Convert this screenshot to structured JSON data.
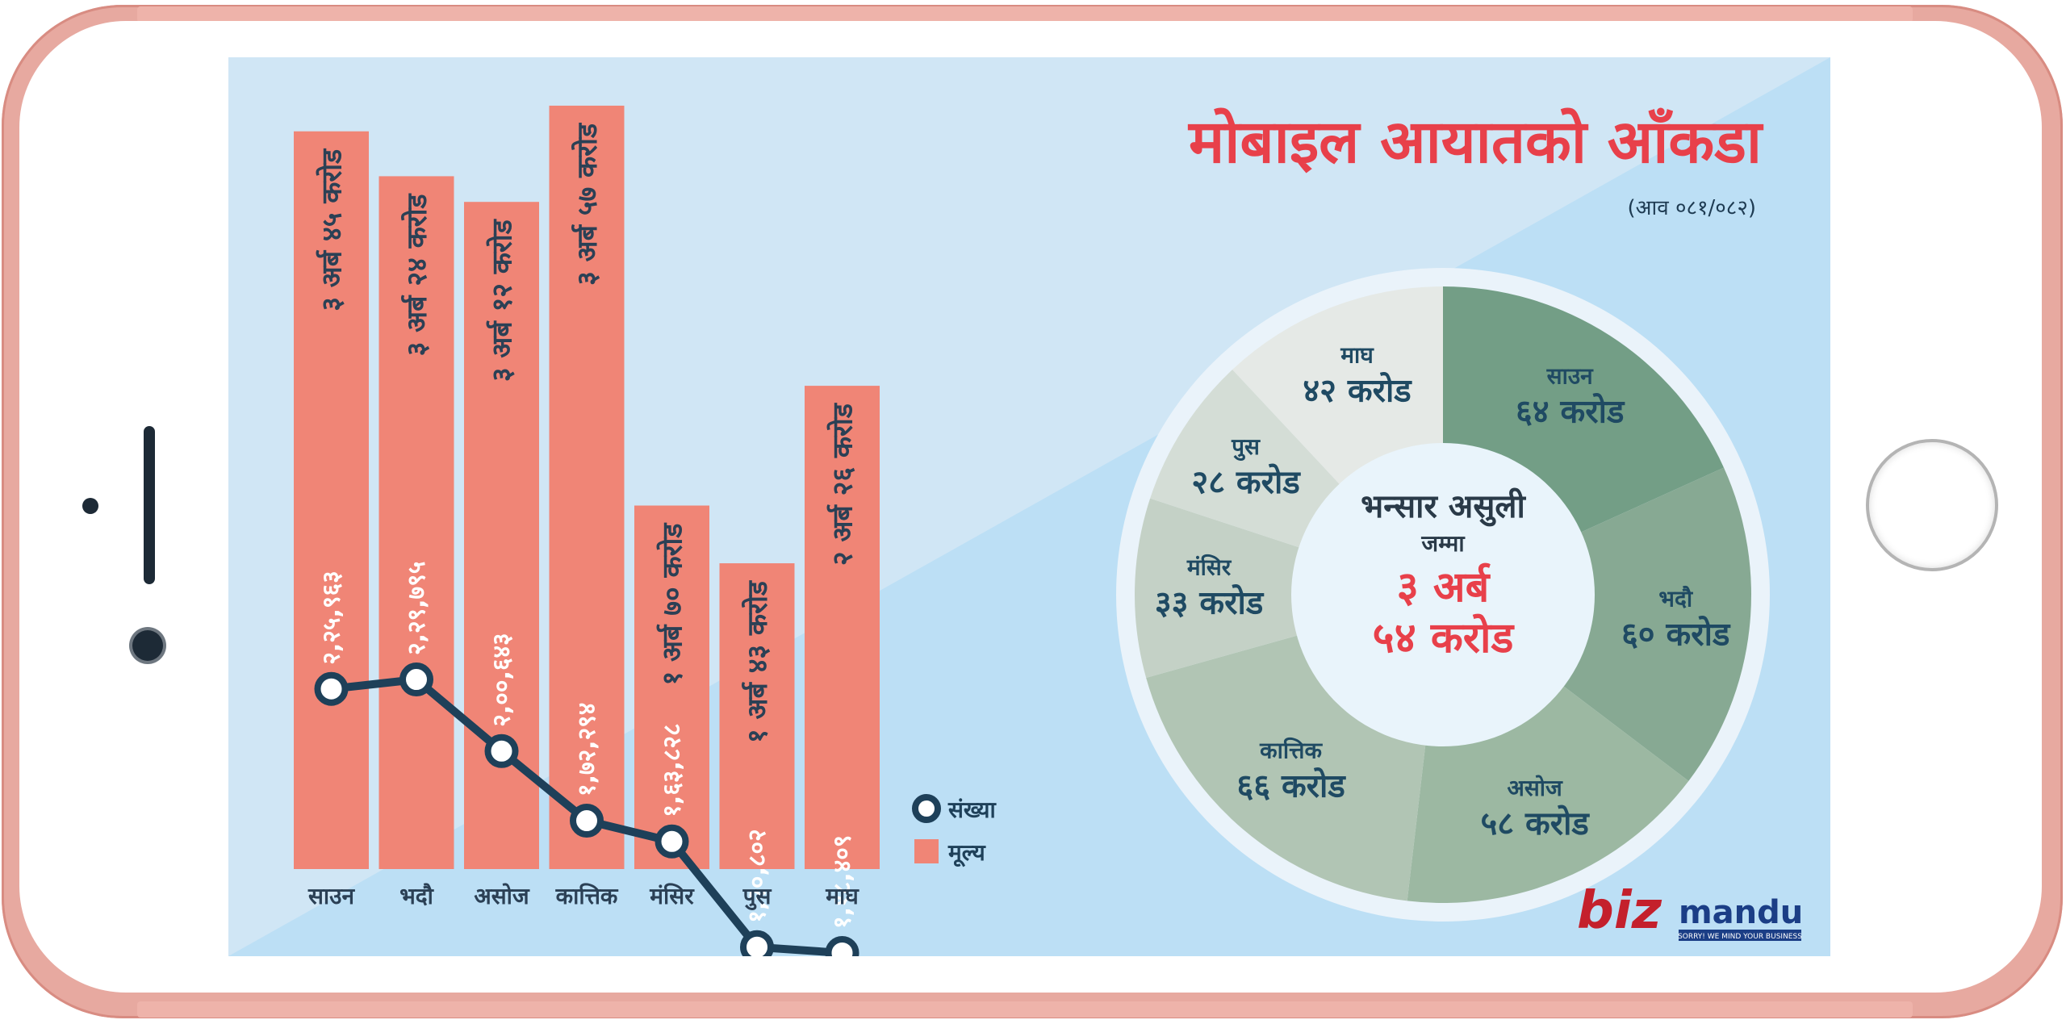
{
  "colors": {
    "screen_bg": "#d0e6f5",
    "screen_bg_light": "#bcdff5",
    "bar": "#f08576",
    "bar_label": "#2b4055",
    "count_label": "#ffffff",
    "line": "#1e4059",
    "title": "#e8404a",
    "donut": [
      "#739e86",
      "#87a993",
      "#9cb8a2",
      "#b1c5b4",
      "#c4d1c6",
      "#d4ddd6",
      "#e5e9e6"
    ],
    "donut_label": "#1f4a63",
    "center_total": "#e8404a",
    "brand_red": "#c4202c",
    "brand_blue": "#1b3e86"
  },
  "header": {
    "title": "मोबाइल आयातको आँकडा",
    "subtitle": "(आव ०८१/०८२)"
  },
  "chart_data": [
    {
      "type": "bar",
      "categories": [
        "साउन",
        "भदौ",
        "असोज",
        "कात्तिक",
        "मंसिर",
        "पुस",
        "माघ"
      ],
      "series": [
        {
          "name": "मूल्य",
          "values": [
            3.45,
            3.24,
            3.12,
            3.57,
            1.7,
            1.43,
            2.26
          ],
          "labels": [
            "३ अर्ब ४५ करोड",
            "३ अर्ब २४ करोड",
            "३ अर्ब १२ करोड",
            "३ अर्ब ५७ करोड",
            "१ अर्ब ७० करोड",
            "१ अर्ब ४३ करोड",
            "२ अर्ब २६ करोड"
          ]
        },
        {
          "name": "संख्या",
          "type": "line",
          "values": [
            225963,
            229795,
            200643,
            172294,
            163828,
            120802,
            118409
          ],
          "labels": [
            "२,२५,९६३",
            "२,२९,७९५",
            "२,००,६४३",
            "१,७२,२९४",
            "१,६३,८२८",
            "१,२०,८०२",
            "१,१८,४०९"
          ]
        }
      ],
      "legend": [
        "संख्या",
        "मूल्य"
      ],
      "legend_position": "right-bottom"
    },
    {
      "type": "pie",
      "center": {
        "title": "भन्सार असुली",
        "subtitle": "जम्मा",
        "total_line1": "३ अर्ब",
        "total_line2": "५४ करोड"
      },
      "slices": [
        {
          "name": "साउन",
          "value": 64,
          "label": "६४ करोड"
        },
        {
          "name": "भदौ",
          "value": 60,
          "label": "६० करोड"
        },
        {
          "name": "असोज",
          "value": 58,
          "label": "५८ करोड"
        },
        {
          "name": "कात्तिक",
          "value": 66,
          "label": "६६ करोड"
        },
        {
          "name": "मंसिर",
          "value": 33,
          "label": "३३ करोड"
        },
        {
          "name": "पुस",
          "value": 28,
          "label": "२८ करोड"
        },
        {
          "name": "माघ",
          "value": 42,
          "label": "४२ करोड"
        }
      ]
    }
  ],
  "brand": {
    "logo_text_left": "biz",
    "logo_text_right": "mandu",
    "tagline": "SORRY! WE MIND YOUR BUSINESS"
  }
}
